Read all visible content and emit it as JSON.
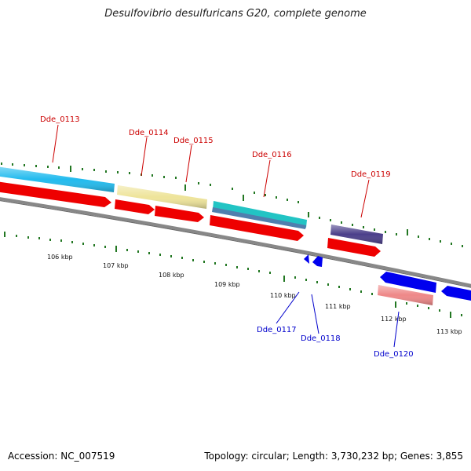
{
  "title": "Desulfovibrio desulfuricans G20, complete genome",
  "footer": {
    "accession": "Accession: NC_007519",
    "summary": "Topology: circular; Length: 3,730,232 bp; Genes: 3,855"
  },
  "ruler_labels": [
    "106 kbp",
    "107 kbp",
    "108 kbp",
    "109 kbp",
    "110 kbp",
    "111 kbp",
    "112 kbp",
    "113 kbp"
  ],
  "gene_labels": {
    "Dde_0113": "Dde_0113",
    "Dde_0114": "Dde_0114",
    "Dde_0115": "Dde_0115",
    "Dde_0116": "Dde_0116",
    "Dde_0119": "Dde_0119",
    "Dde_0117": "Dde_0117",
    "Dde_0118": "Dde_0118",
    "Dde_0120": "Dde_0120"
  },
  "colors": {
    "forward_label": "#cc0000",
    "reverse_label": "#0000cc",
    "cds_red": "#ee0000",
    "cds_blue": "#0000ee",
    "cyan_feature": "#22bbee",
    "yellow_feature": "#eee49a",
    "teal_feature": "#22c4c4",
    "purple_feature": "#4b3f8a",
    "pink_feature": "#ee8888",
    "backbone": "#888888",
    "tick": "#227722"
  }
}
